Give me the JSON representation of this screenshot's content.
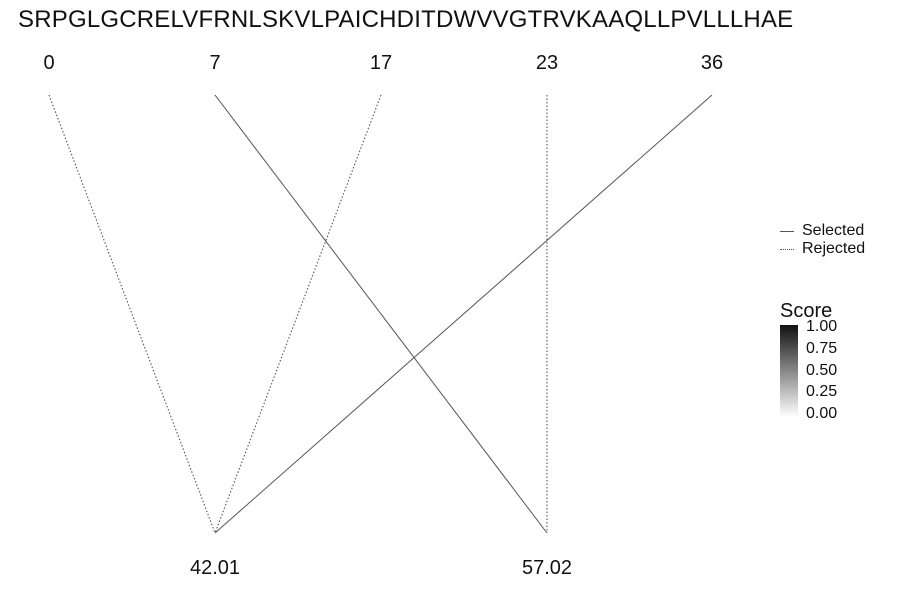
{
  "chart_data": {
    "type": "line",
    "sequence": "SRPGLGCRELVFRNLSKVLPAICHDITDWVVGTRVKAAQLLPVLLLHAE",
    "top_positions": [
      "0",
      "7",
      "17",
      "23",
      "36"
    ],
    "bottom_values": [
      "42.01",
      "57.02"
    ],
    "connections": [
      {
        "from": "0",
        "to": "42.01",
        "status": "Rejected"
      },
      {
        "from": "17",
        "to": "42.01",
        "status": "Rejected"
      },
      {
        "from": "36",
        "to": "42.01",
        "status": "Selected"
      },
      {
        "from": "7",
        "to": "57.02",
        "status": "Selected"
      },
      {
        "from": "23",
        "to": "57.02",
        "status": "Rejected"
      }
    ],
    "legend": {
      "entries": [
        {
          "label": "Selected",
          "style": "solid"
        },
        {
          "label": "Rejected",
          "style": "dotted"
        }
      ],
      "placement": "right"
    },
    "colorbar": {
      "title": "Score",
      "ticks": [
        "1.00",
        "0.75",
        "0.50",
        "0.25",
        "0.00"
      ],
      "range": [
        0,
        1
      ],
      "colors": [
        "#ffffff",
        "#111111"
      ]
    },
    "line_color": "#555555",
    "grid": false
  }
}
